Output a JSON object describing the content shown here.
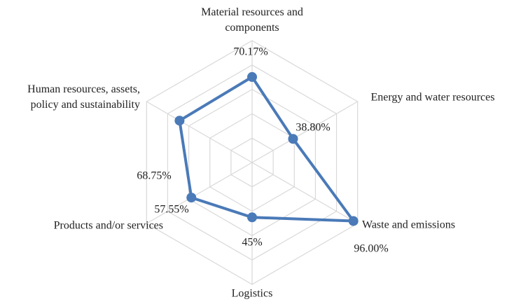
{
  "chart_data": {
    "type": "radar",
    "categories": [
      "Material resources and components",
      "Energy and water resources",
      "Waste and emissions",
      "Logistics",
      "Products and/or services",
      "Human resources, assets, policy and sustainability"
    ],
    "values": [
      70.17,
      38.8,
      96.0,
      45,
      57.55,
      68.75
    ],
    "value_labels": [
      "70.17%",
      "38.80%",
      "96.00%",
      "45%",
      "57.55%",
      "68.75%"
    ],
    "color": "#4a7ab8",
    "ylim": [
      0,
      100
    ],
    "yticks": [
      20,
      40,
      60,
      80,
      100
    ],
    "grid": true
  }
}
